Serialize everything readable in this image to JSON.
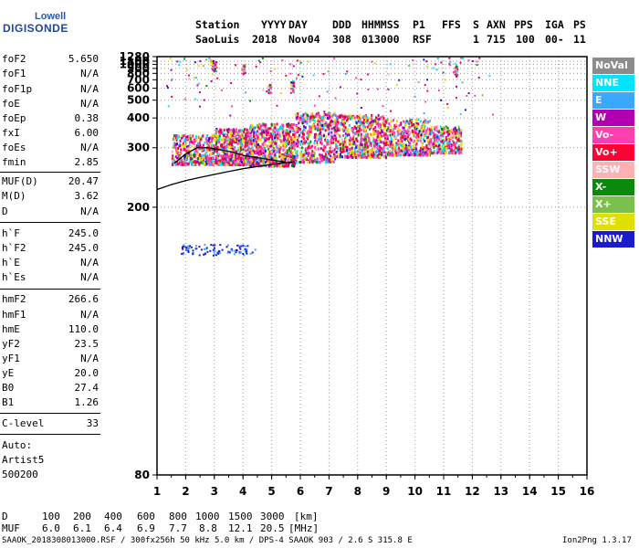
{
  "logo": {
    "line1": "Lowell",
    "line2": "DIGISONDE"
  },
  "header": {
    "labels": [
      "Station",
      "YYYY",
      "DAY",
      "DDD",
      "HHMMSS",
      "P1",
      "FFS",
      "S",
      "AXN",
      "PPS",
      "IGA",
      "PS"
    ],
    "values": [
      "SaoLuis",
      "2018",
      "Nov04",
      "308",
      "013000",
      "RSF",
      "",
      "1",
      "715",
      "100",
      "00-",
      "11"
    ]
  },
  "params": [
    {
      "k": "foF2",
      "v": "5.650"
    },
    {
      "k": "foF1",
      "v": "N/A"
    },
    {
      "k": "foF1p",
      "v": "N/A"
    },
    {
      "k": "foE",
      "v": "N/A"
    },
    {
      "k": "foEp",
      "v": "0.38"
    },
    {
      "k": "fxI",
      "v": "6.00"
    },
    {
      "k": "foEs",
      "v": "N/A"
    },
    {
      "k": "fmin",
      "v": "2.85"
    },
    {
      "k": "MUF(D)",
      "v": "20.47"
    },
    {
      "k": "M(D)",
      "v": "3.62"
    },
    {
      "k": "D",
      "v": "N/A"
    },
    {
      "k": "h`F",
      "v": "245.0"
    },
    {
      "k": "h`F2",
      "v": "245.0"
    },
    {
      "k": "h`E",
      "v": "N/A"
    },
    {
      "k": "h`Es",
      "v": "N/A"
    },
    {
      "k": "hmF2",
      "v": "266.6"
    },
    {
      "k": "hmF1",
      "v": "N/A"
    },
    {
      "k": "hmE",
      "v": "110.0"
    },
    {
      "k": "yF2",
      "v": "23.5"
    },
    {
      "k": "yF1",
      "v": "N/A"
    },
    {
      "k": "yE",
      "v": "20.0"
    },
    {
      "k": "B0",
      "v": "27.4"
    },
    {
      "k": "B1",
      "v": "1.26"
    },
    {
      "k": "C-level",
      "v": "33"
    }
  ],
  "auto": [
    "Auto:",
    "Artist5",
    "500200"
  ],
  "legend": [
    {
      "label": "NoVal",
      "color": "#8c8c8c"
    },
    {
      "label": "NNE",
      "color": "#00e5ff"
    },
    {
      "label": "E",
      "color": "#3aa8ff"
    },
    {
      "label": "W",
      "color": "#b000b0"
    },
    {
      "label": "Vo-",
      "color": "#ff3fae"
    },
    {
      "label": "Vo+",
      "color": "#ff0033"
    },
    {
      "label": "SSW",
      "color": "#ffb0b0"
    },
    {
      "label": "X-",
      "color": "#0a8a0a"
    },
    {
      "label": "X+",
      "color": "#7ac04a"
    },
    {
      "label": "SSE",
      "color": "#e0e000"
    },
    {
      "label": "NNW",
      "color": "#1a1ad0"
    }
  ],
  "muf_table": {
    "d_label": "D",
    "d_values": [
      "100",
      "200",
      "400",
      "600",
      "800",
      "1000",
      "1500",
      "3000"
    ],
    "d_unit": "[km]",
    "muf_label": "MUF",
    "muf_values": [
      "6.0",
      "6.1",
      "6.4",
      "6.9",
      "7.7",
      "8.8",
      "12.1",
      "20.5"
    ],
    "muf_unit": "[MHz]"
  },
  "footer": {
    "left": "SAAOK_2018308013000.RSF / 300fx256h 50 kHz 5.0 km / DPS-4 SAAOK 903 / 2.6 S 315.8 E",
    "right": "Ion2Png 1.3.17"
  },
  "chart_data": {
    "type": "scatter",
    "xlim": [
      1,
      16
    ],
    "ylim": [
      80,
      1280
    ],
    "y_scale": "reciprocal",
    "x_ticks": [
      1,
      2,
      3,
      4,
      5,
      6,
      7,
      8,
      9,
      10,
      11,
      12,
      13,
      14,
      15,
      16
    ],
    "y_ticks": [
      80,
      200,
      300,
      400,
      500,
      600,
      700,
      800,
      900,
      1000,
      1100,
      1280
    ],
    "grid": "dotted",
    "legend_position": "right",
    "ordinary_trace": {
      "x": [
        1.0,
        1.5,
        2.0,
        2.5,
        3.0,
        3.5,
        4.0,
        4.5,
        5.0,
        5.4,
        5.8
      ],
      "y": [
        222,
        229,
        235,
        240,
        245,
        250,
        255,
        259,
        263,
        266,
        268
      ]
    },
    "profile_curve": {
      "x": [
        1.6,
        2.0,
        2.4,
        2.8,
        3.2,
        3.6,
        4.0,
        4.4,
        4.8,
        5.2,
        5.5
      ],
      "y": [
        265,
        285,
        300,
        300,
        295,
        290,
        282,
        278,
        274,
        270,
        268
      ]
    }
  }
}
